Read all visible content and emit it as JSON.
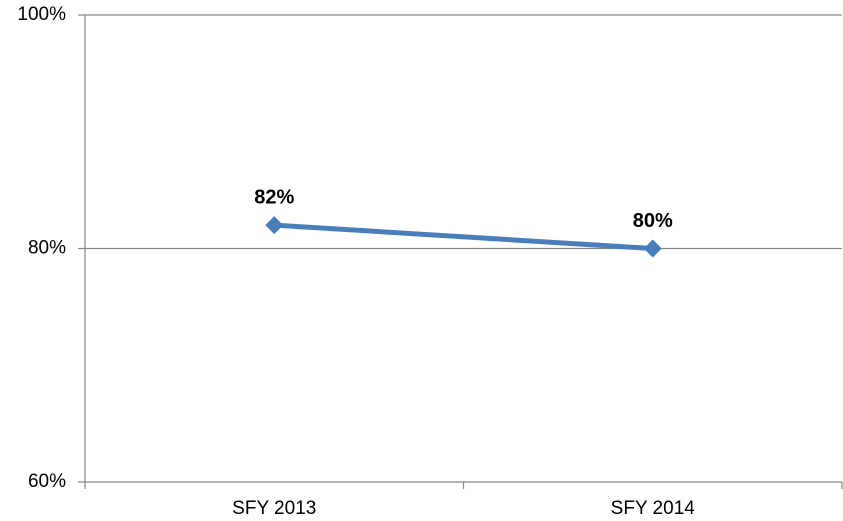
{
  "chart_data": {
    "type": "line",
    "categories": [
      "SFY 2013",
      "SFY 2014"
    ],
    "series": [
      {
        "values": [
          82,
          80
        ],
        "value_labels": [
          "82%",
          "80%"
        ],
        "color": "#4a7ebb"
      }
    ],
    "ylim": [
      60,
      100
    ],
    "yticks": [
      {
        "value": 60,
        "label": "60%"
      },
      {
        "value": 80,
        "label": "80%"
      },
      {
        "value": 100,
        "label": "100%"
      }
    ],
    "grid": true
  }
}
